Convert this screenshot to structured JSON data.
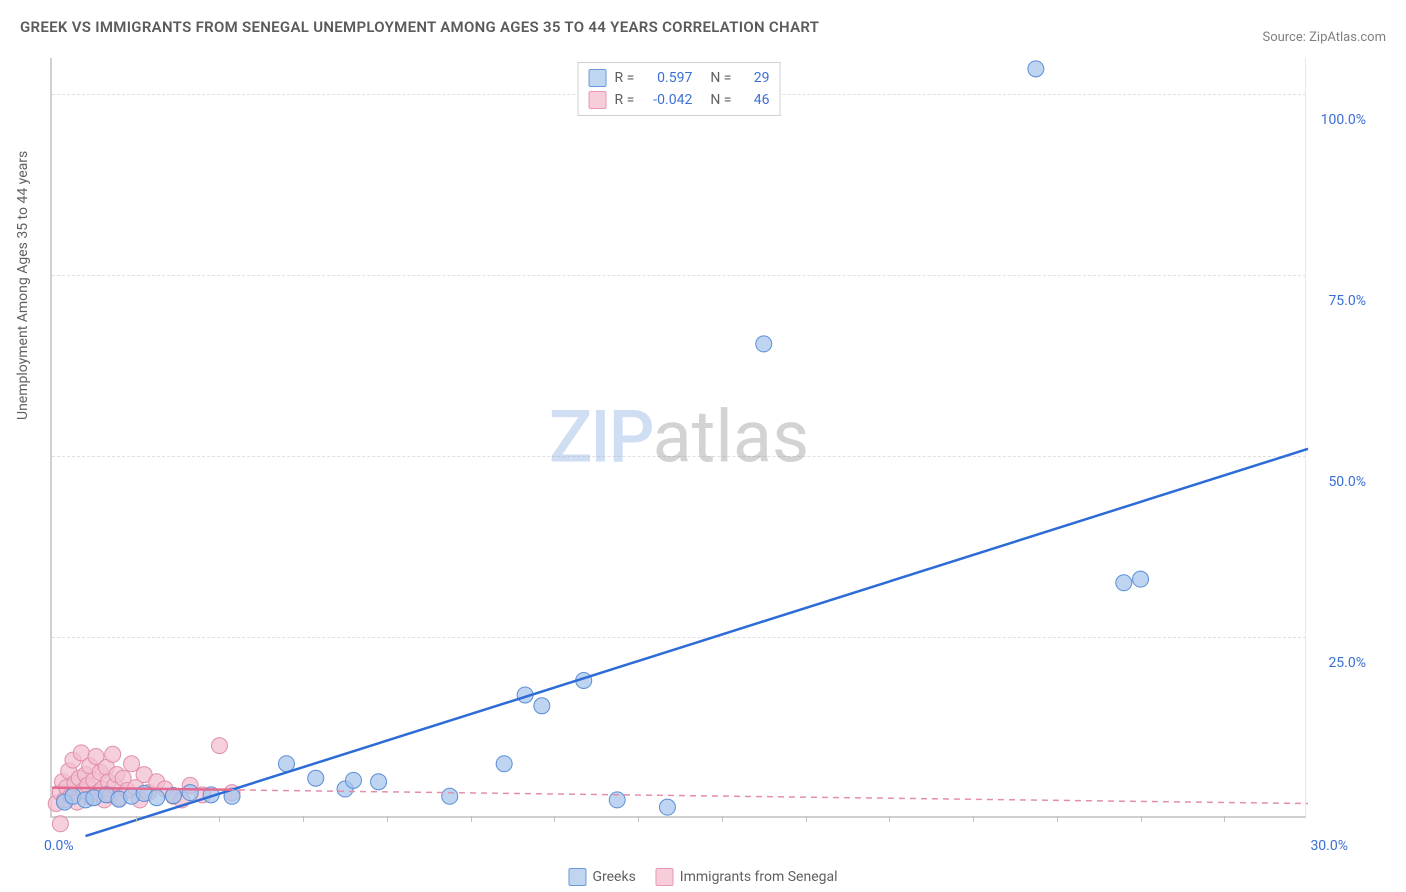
{
  "title": "GREEK VS IMMIGRANTS FROM SENEGAL UNEMPLOYMENT AMONG AGES 35 TO 44 YEARS CORRELATION CHART",
  "source": "Source: ZipAtlas.com",
  "y_axis_label": "Unemployment Among Ages 35 to 44 years",
  "watermark": {
    "part1": "ZIP",
    "part2": "atlas"
  },
  "chart": {
    "type": "scatter-with-trend",
    "xlim": [
      0,
      30
    ],
    "ylim": [
      0,
      105
    ],
    "x_ticks": [
      0,
      30
    ],
    "x_tick_labels": [
      "0.0%",
      "30.0%"
    ],
    "x_minor_ticks": [
      2,
      4,
      6,
      8,
      10,
      12,
      14,
      16,
      18,
      20,
      22,
      24,
      26,
      28
    ],
    "y_ticks": [
      25,
      50,
      75,
      100
    ],
    "y_tick_labels": [
      "25.0%",
      "50.0%",
      "75.0%",
      "100.0%"
    ],
    "background_color": "#ffffff",
    "grid_color": "#e0e0e0",
    "axis_color": "#d0d0d0",
    "tick_label_color": "#3b6fd6",
    "series": [
      {
        "name": "Greeks",
        "color_fill": "#a8c5ec",
        "color_stroke": "#5a8fd6",
        "swatch_fill": "#c0d5f0",
        "swatch_border": "#6a9bd8",
        "marker_radius": 8,
        "marker_opacity": 0.75,
        "R": "0.597",
        "N": "29",
        "trend": {
          "style": "solid",
          "color": "#2d6cd6",
          "width": 2.5,
          "x1": 0.8,
          "y1": -2.5,
          "x2": 30,
          "y2": 51
        },
        "points": [
          {
            "x": 0.3,
            "y": 2.2
          },
          {
            "x": 0.5,
            "y": 3.0
          },
          {
            "x": 0.8,
            "y": 2.5
          },
          {
            "x": 1.0,
            "y": 2.8
          },
          {
            "x": 1.3,
            "y": 3.2
          },
          {
            "x": 1.6,
            "y": 2.6
          },
          {
            "x": 1.9,
            "y": 3.0
          },
          {
            "x": 2.2,
            "y": 3.4
          },
          {
            "x": 2.5,
            "y": 2.8
          },
          {
            "x": 2.9,
            "y": 3.1
          },
          {
            "x": 3.3,
            "y": 3.5
          },
          {
            "x": 3.8,
            "y": 3.2
          },
          {
            "x": 4.3,
            "y": 3.0
          },
          {
            "x": 5.6,
            "y": 7.5
          },
          {
            "x": 6.3,
            "y": 5.5
          },
          {
            "x": 7.0,
            "y": 4.0
          },
          {
            "x": 7.2,
            "y": 5.2
          },
          {
            "x": 7.8,
            "y": 5.0
          },
          {
            "x": 9.5,
            "y": 3.0
          },
          {
            "x": 10.8,
            "y": 7.5
          },
          {
            "x": 11.3,
            "y": 17.0
          },
          {
            "x": 11.7,
            "y": 15.5
          },
          {
            "x": 12.7,
            "y": 19.0
          },
          {
            "x": 13.5,
            "y": 2.5
          },
          {
            "x": 14.7,
            "y": 1.5
          },
          {
            "x": 17.0,
            "y": 65.5
          },
          {
            "x": 23.5,
            "y": 103.5
          },
          {
            "x": 25.6,
            "y": 32.5
          },
          {
            "x": 26.0,
            "y": 33.0
          }
        ]
      },
      {
        "name": "Immigrants from Senegal",
        "color_fill": "#f2bfcf",
        "color_stroke": "#e08fab",
        "swatch_fill": "#f6cdd9",
        "swatch_border": "#e799b3",
        "marker_radius": 8,
        "marker_opacity": 0.75,
        "R": "-0.042",
        "N": "46",
        "trend": {
          "style": "dashed",
          "color": "#e38fab",
          "width": 1.5,
          "x1": 0,
          "y1": 4.2,
          "x2": 30,
          "y2": 2.0
        },
        "trend_solid_segment": {
          "color": "#e06a90",
          "width": 2.5,
          "x1": 0,
          "y1": 4.2,
          "x2": 4.3,
          "y2": 3.9
        },
        "points": [
          {
            "x": 0.1,
            "y": 2.0
          },
          {
            "x": 0.2,
            "y": 3.5
          },
          {
            "x": 0.25,
            "y": 5.0
          },
          {
            "x": 0.3,
            "y": 2.5
          },
          {
            "x": 0.35,
            "y": 4.2
          },
          {
            "x": 0.4,
            "y": 6.5
          },
          {
            "x": 0.45,
            "y": 3.0
          },
          {
            "x": 0.5,
            "y": 8.0
          },
          {
            "x": 0.55,
            "y": 4.8
          },
          {
            "x": 0.6,
            "y": 2.2
          },
          {
            "x": 0.65,
            "y": 5.5
          },
          {
            "x": 0.7,
            "y": 9.0
          },
          {
            "x": 0.75,
            "y": 3.8
          },
          {
            "x": 0.8,
            "y": 6.0
          },
          {
            "x": 0.85,
            "y": 4.5
          },
          {
            "x": 0.9,
            "y": 7.2
          },
          {
            "x": 0.95,
            "y": 2.8
          },
          {
            "x": 1.0,
            "y": 5.2
          },
          {
            "x": 1.05,
            "y": 8.5
          },
          {
            "x": 1.1,
            "y": 3.5
          },
          {
            "x": 1.15,
            "y": 6.3
          },
          {
            "x": 1.2,
            "y": 4.0
          },
          {
            "x": 1.25,
            "y": 2.5
          },
          {
            "x": 1.3,
            "y": 7.0
          },
          {
            "x": 1.35,
            "y": 5.0
          },
          {
            "x": 1.4,
            "y": 3.2
          },
          {
            "x": 1.45,
            "y": 8.8
          },
          {
            "x": 1.5,
            "y": 4.5
          },
          {
            "x": 1.55,
            "y": 6.0
          },
          {
            "x": 1.6,
            "y": 2.8
          },
          {
            "x": 1.7,
            "y": 5.5
          },
          {
            "x": 1.8,
            "y": 3.8
          },
          {
            "x": 1.9,
            "y": 7.5
          },
          {
            "x": 2.0,
            "y": 4.2
          },
          {
            "x": 2.1,
            "y": 2.5
          },
          {
            "x": 2.2,
            "y": 6.0
          },
          {
            "x": 2.3,
            "y": 3.5
          },
          {
            "x": 2.5,
            "y": 5.0
          },
          {
            "x": 2.7,
            "y": 4.0
          },
          {
            "x": 2.9,
            "y": 3.0
          },
          {
            "x": 3.1,
            "y": 2.5
          },
          {
            "x": 3.3,
            "y": 4.5
          },
          {
            "x": 3.6,
            "y": 3.2
          },
          {
            "x": 4.0,
            "y": 10.0
          },
          {
            "x": 4.3,
            "y": 3.5
          },
          {
            "x": 0.2,
            "y": -0.8
          }
        ]
      }
    ]
  },
  "legend_top": {
    "r_label": "R =",
    "n_label": "N ="
  },
  "legend_bottom": [
    {
      "label": "Greeks"
    },
    {
      "label": "Immigrants from Senegal"
    }
  ]
}
